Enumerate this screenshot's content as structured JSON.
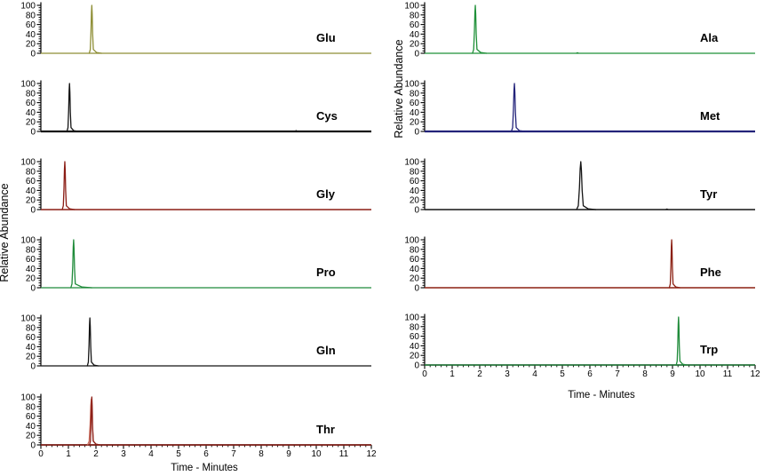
{
  "chart_data": {
    "type": "line",
    "chart_kind": "stacked extracted-ion chromatograms of amino acids",
    "x_axis": {
      "label": "Time - Minutes",
      "range": [
        0,
        12
      ],
      "tick_labels": [
        "0",
        "1",
        "2",
        "3",
        "4",
        "5",
        "6",
        "7",
        "8",
        "9",
        "10",
        "11",
        "12"
      ],
      "minor_tick_step_min": 0.2
    },
    "y_axis": {
      "label": "Relative Abundance",
      "range": [
        0,
        100
      ],
      "tick_labels": [
        "100",
        "80",
        "60",
        "40",
        "20",
        "0"
      ],
      "minor_tick_step": 5
    },
    "columns": [
      {
        "position": "left",
        "panels": [
          {
            "label": "Glu",
            "color": "#8e8e35",
            "peak": {
              "rt_min": 1.85,
              "rel_abundance": 100,
              "half_width_min": 0.055,
              "tail_min": 0.12
            }
          },
          {
            "label": "Cys",
            "color": "#141414",
            "baseline_width": 2.2,
            "peak": {
              "rt_min": 1.04,
              "rel_abundance": 100,
              "half_width_min": 0.055,
              "tail_min": 0.1
            },
            "noise_blips": [
              {
                "rt_min": 9.27,
                "rel_abundance": 2
              }
            ]
          },
          {
            "label": "Gly",
            "color": "#8b1d15",
            "baseline_width": 1.6,
            "peak": {
              "rt_min": 0.87,
              "rel_abundance": 100,
              "half_width_min": 0.055,
              "tail_min": 0.12
            }
          },
          {
            "label": "Pro",
            "color": "#1f8b3a",
            "peak": {
              "rt_min": 1.19,
              "rel_abundance": 100,
              "half_width_min": 0.06,
              "tail_min": 0.24
            }
          },
          {
            "label": "Gln",
            "color": "#141414",
            "peak": {
              "rt_min": 1.78,
              "rel_abundance": 100,
              "half_width_min": 0.055,
              "tail_min": 0.1
            }
          },
          {
            "label": "Thr",
            "color": "#8b1d15",
            "baseline_width": 1.5,
            "peak": {
              "rt_min": 1.85,
              "rel_abundance": 100,
              "half_width_min": 0.05,
              "tail_min": 0.1
            },
            "secondary_trace": {
              "color": "#c4604f",
              "rt_min": 1.83,
              "rel_abundance": 96,
              "half_width_min": 0.08,
              "tail_min": 0.1
            }
          }
        ]
      },
      {
        "position": "right",
        "panels": [
          {
            "label": "Ala",
            "color": "#1f9038",
            "peak": {
              "rt_min": 1.84,
              "rel_abundance": 100,
              "half_width_min": 0.06,
              "tail_min": 0.14
            },
            "noise_blips": [
              {
                "rt_min": 5.55,
                "rel_abundance": 1.5
              }
            ]
          },
          {
            "label": "Met",
            "color": "#23237a",
            "baseline_width": 2.2,
            "peak": {
              "rt_min": 3.26,
              "rel_abundance": 100,
              "half_width_min": 0.065,
              "tail_min": 0.12
            }
          },
          {
            "label": "Tyr",
            "color": "#141414",
            "baseline_width": 1.6,
            "peak": {
              "rt_min": 5.67,
              "rel_abundance": 100,
              "half_width_min": 0.09,
              "tail_min": 0.18
            },
            "noise_blips": [
              {
                "rt_min": 8.8,
                "rel_abundance": 1.5
              }
            ]
          },
          {
            "label": "Phe",
            "color": "#8b2012",
            "baseline_width": 1.5,
            "peak": {
              "rt_min": 8.97,
              "rel_abundance": 100,
              "half_width_min": 0.05,
              "tail_min": 0.1
            }
          },
          {
            "label": "Trp",
            "color": "#1f8b3a",
            "peak": {
              "rt_min": 9.22,
              "rel_abundance": 100,
              "half_width_min": 0.05,
              "tail_min": 0.1
            }
          }
        ]
      }
    ]
  }
}
